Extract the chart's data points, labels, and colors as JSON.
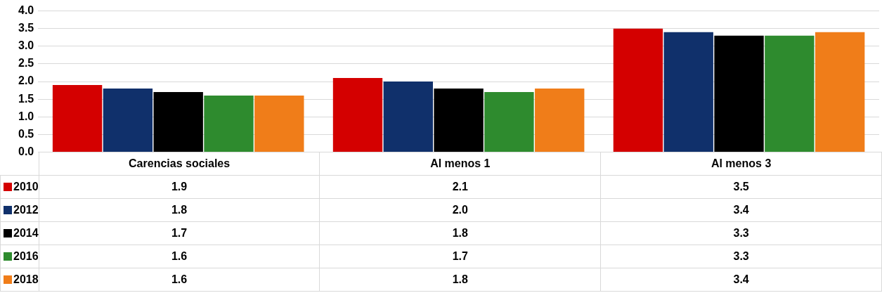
{
  "chart_data": {
    "type": "bar",
    "categories": [
      "Carencias sociales",
      "Al menos 1",
      "Al menos 3"
    ],
    "series": [
      {
        "name": "2010",
        "color": "#d40000",
        "values": [
          1.9,
          2.1,
          3.5
        ],
        "value_labels": [
          "1.9",
          "2.1",
          "3.5"
        ]
      },
      {
        "name": "2012",
        "color": "#10306b",
        "values": [
          1.8,
          2.0,
          3.4
        ],
        "value_labels": [
          "1.8",
          "2.0",
          "3.4"
        ]
      },
      {
        "name": "2014",
        "color": "#000000",
        "values": [
          1.7,
          1.8,
          3.3
        ],
        "value_labels": [
          "1.7",
          "1.8",
          "3.3"
        ]
      },
      {
        "name": "2016",
        "color": "#2e8b2e",
        "values": [
          1.6,
          1.7,
          3.3
        ],
        "value_labels": [
          "1.6",
          "1.7",
          "3.3"
        ]
      },
      {
        "name": "2018",
        "color": "#f07d19",
        "values": [
          1.6,
          1.8,
          3.4
        ],
        "value_labels": [
          "1.6",
          "1.8",
          "3.4"
        ]
      }
    ],
    "ylim": [
      0,
      4
    ],
    "yticks": [
      {
        "value": 0,
        "label": "0.0"
      },
      {
        "value": 0.5,
        "label": "0.5"
      },
      {
        "value": 1,
        "label": "1.0"
      },
      {
        "value": 1.5,
        "label": "1.5"
      },
      {
        "value": 2,
        "label": "2.0"
      },
      {
        "value": 2.5,
        "label": "2.5"
      },
      {
        "value": 3,
        "label": "3.0"
      },
      {
        "value": 3.5,
        "label": "3.5"
      },
      {
        "value": 4,
        "label": "4.0"
      }
    ],
    "grid": "y",
    "legend": "bottom left"
  }
}
